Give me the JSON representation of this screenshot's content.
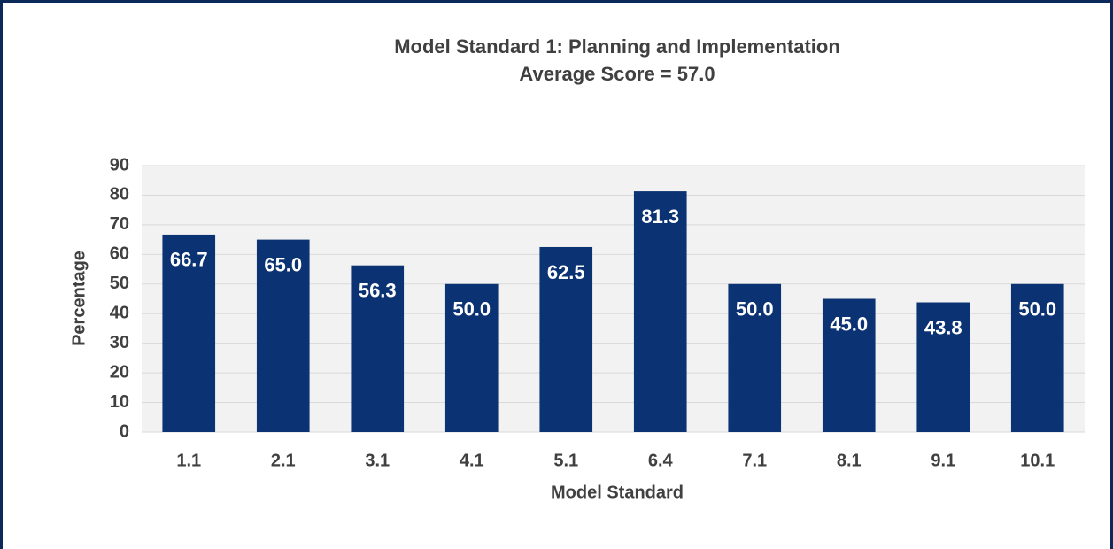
{
  "chart_data": {
    "type": "bar",
    "title": "Model Standard 1: Planning and Implementation",
    "subtitle": "Average Score = 57.0",
    "x_label": "Model Standard",
    "y_label": "Percentage",
    "categories": [
      "1.1",
      "2.1",
      "3.1",
      "4.1",
      "5.1",
      "6.4",
      "7.1",
      "8.1",
      "9.1",
      "10.1"
    ],
    "values": [
      66.7,
      65,
      56.3,
      50,
      62.5,
      81.3,
      50,
      45,
      43.8,
      50
    ],
    "value_labels": [
      "66.7",
      "65.0",
      "56.3",
      "50.0",
      "62.5",
      "81.3",
      "50.0",
      "45.0",
      "43.8",
      "50.0"
    ],
    "color": "#0b3272",
    "ylim": [
      0,
      90
    ],
    "yticks": [
      0,
      10,
      20,
      30,
      40,
      50,
      60,
      70,
      80,
      90
    ],
    "grid": true
  }
}
